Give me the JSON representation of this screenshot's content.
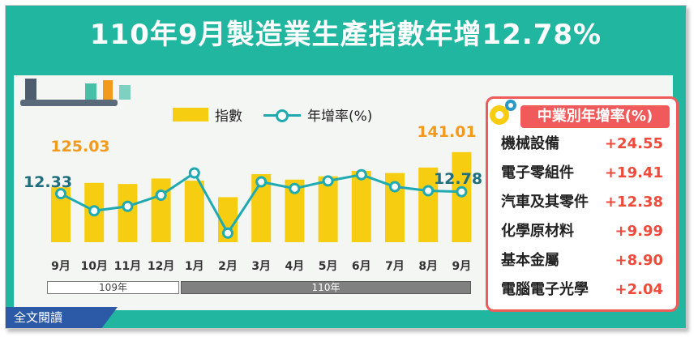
{
  "title": "110年9月製造業生產指數年增12.78%",
  "legend": {
    "bar": "指數",
    "line": "年增率(%)"
  },
  "year_labels": {
    "y109": "109年",
    "y110": "110年"
  },
  "callouts": {
    "first_index": "125.03",
    "last_index": "141.01",
    "first_rate": "12.33",
    "last_rate": "12.78"
  },
  "industry": {
    "heading": "中業別年增率(%)",
    "rows": [
      {
        "name": "機械設備",
        "value": "+24.55"
      },
      {
        "name": "電子零組件",
        "value": "+19.41"
      },
      {
        "name": "汽車及其零件",
        "value": "+12.38"
      },
      {
        "name": "化學原材料",
        "value": "+9.99"
      },
      {
        "name": "基本金屬",
        "value": "+8.90"
      },
      {
        "name": "電腦電子光學",
        "value": "+2.04"
      }
    ]
  },
  "read_all": "全文閱讀",
  "colors": {
    "frame": "#20b6a0",
    "bar": "#f7cd12",
    "line": "#1eaab0",
    "accent_orange": "#f29a1e",
    "accent_red": "#f05a5a"
  },
  "chart_data": {
    "type": "bar+line",
    "categories": [
      "9月",
      "10月",
      "11月",
      "12月",
      "1月",
      "2月",
      "3月",
      "4月",
      "5月",
      "6月",
      "7月",
      "8月",
      "9月"
    ],
    "series": [
      {
        "name": "指數",
        "type": "bar",
        "values": [
          125.03,
          127.0,
          126.5,
          129.0,
          128.0,
          120.5,
          131.0,
          128.5,
          130.0,
          132.5,
          131.5,
          134.0,
          141.01
        ]
      },
      {
        "name": "年增率(%)",
        "type": "line",
        "values": [
          12.33,
          8.5,
          9.5,
          12.0,
          17.0,
          3.5,
          15.0,
          13.5,
          15.2,
          16.6,
          13.9,
          13.0,
          12.78
        ]
      }
    ],
    "year_groups": [
      {
        "label": "109年",
        "months": 4
      },
      {
        "label": "110年",
        "months": 9
      }
    ]
  }
}
